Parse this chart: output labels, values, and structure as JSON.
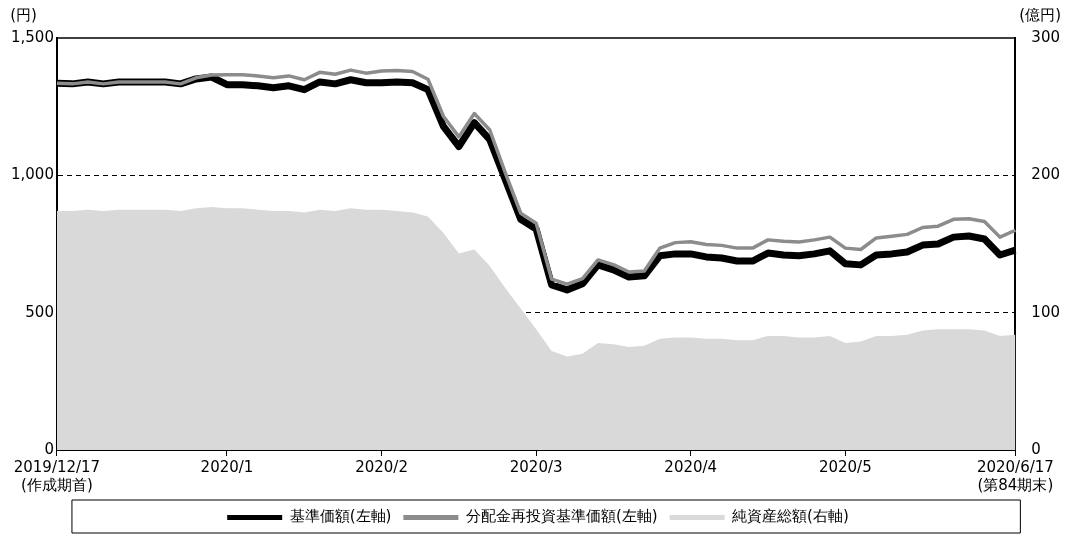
{
  "chart_data": {
    "type": "line",
    "ylabel": "(円)",
    "y2label": "(億円)",
    "categories": [
      "2019/12/17\n(作成期首)",
      null,
      null,
      null,
      null,
      null,
      null,
      null,
      null,
      null,
      null,
      "2020/1",
      null,
      null,
      null,
      null,
      null,
      null,
      null,
      null,
      null,
      "2020/2",
      null,
      null,
      null,
      null,
      null,
      null,
      null,
      null,
      null,
      "2020/3",
      null,
      null,
      null,
      null,
      null,
      null,
      null,
      null,
      null,
      "2020/4",
      null,
      null,
      null,
      null,
      null,
      null,
      null,
      null,
      null,
      "2020/5",
      null,
      null,
      null,
      null,
      null,
      null,
      null,
      null,
      null,
      null,
      "2020/6/17\n(第84期末)"
    ],
    "series": [
      {
        "name": "基準価額(左軸)",
        "color": "#000000",
        "values": [
          1335,
          1333,
          1340,
          1333,
          1340,
          1340,
          1340,
          1340,
          1333,
          1351,
          1358,
          1330,
          1330,
          1326,
          1319,
          1326,
          1312,
          1340,
          1333,
          1348,
          1337,
          1337,
          1340,
          1337,
          1312,
          1178,
          1105,
          1192,
          1130,
          985,
          840,
          804,
          601,
          583,
          605,
          674,
          656,
          630,
          634,
          707,
          714,
          714,
          703,
          699,
          688,
          688,
          717,
          710,
          707,
          714,
          725,
          678,
          674,
          710,
          714,
          721,
          746,
          750,
          775,
          779,
          768,
          710,
          728
        ]
      },
      {
        "name": "分配金再投資基準価額(左軸)",
        "color": "#8c8c8c",
        "values": [
          1335,
          1333,
          1340,
          1333,
          1340,
          1340,
          1340,
          1340,
          1333,
          1355,
          1365,
          1366,
          1366,
          1362,
          1355,
          1362,
          1348,
          1375,
          1368,
          1383,
          1372,
          1380,
          1382,
          1378,
          1350,
          1215,
          1140,
          1225,
          1165,
          1010,
          862,
          826,
          622,
          604,
          624,
          692,
          675,
          648,
          652,
          735,
          755,
          758,
          748,
          745,
          735,
          735,
          765,
          760,
          757,
          765,
          775,
          735,
          730,
          772,
          778,
          785,
          810,
          815,
          840,
          842,
          832,
          775,
          800
        ]
      },
      {
        "name": "純資産総額(右軸)",
        "type": "area",
        "axis": "y2",
        "color": "#d9d9d9",
        "values": [
          174,
          174,
          175,
          174,
          175,
          175,
          175,
          175,
          174,
          176,
          177,
          176,
          176,
          175,
          174,
          174,
          173,
          175,
          174,
          176,
          175,
          175,
          174,
          173,
          170,
          158,
          143,
          146,
          134,
          118,
          103,
          88,
          72,
          68,
          70,
          78,
          77,
          75,
          76,
          81,
          82,
          82,
          81,
          81,
          80,
          80,
          83,
          83,
          82,
          82,
          83,
          78,
          79,
          83,
          83,
          84,
          87,
          88,
          88,
          88,
          87,
          83,
          84
        ]
      }
    ],
    "ylim": [
      0,
      1500
    ],
    "yticks": [
      0,
      {
        "value": 500,
        "label": "500"
      },
      {
        "value": 1000,
        "label": "1,000"
      },
      {
        "value": 1500,
        "label": "1,500"
      }
    ],
    "y2lim": [
      0,
      300
    ],
    "y2ticks": [
      0,
      100,
      200,
      300
    ],
    "grid": "y",
    "line_style": "solid",
    "marker": "none",
    "legend": "bottom"
  }
}
